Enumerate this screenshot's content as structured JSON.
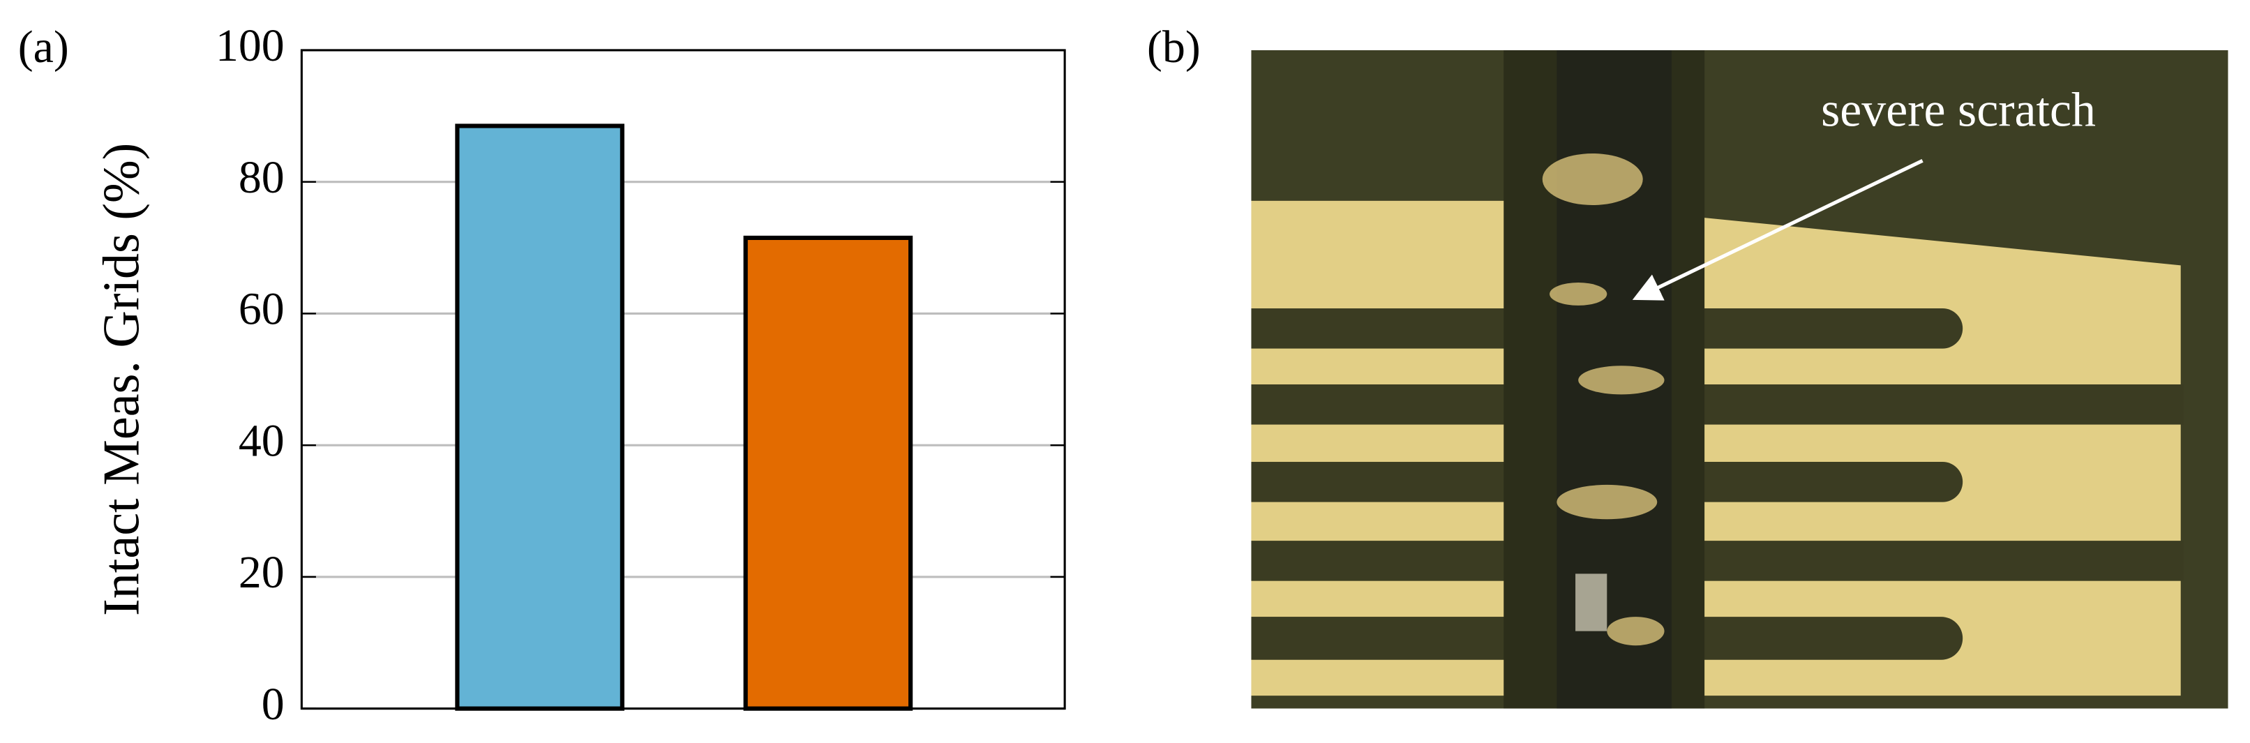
{
  "chart_data": {
    "type": "bar",
    "ylabel": "Intact Meas. Grids (%)",
    "categories": [
      null,
      null
    ],
    "values": [
      88.5,
      71.5
    ],
    "colors": [
      "#63b3d5",
      "#e36b00"
    ],
    "ylim": [
      0,
      100
    ],
    "yticks": [
      0,
      20,
      40,
      60,
      80,
      100
    ],
    "grid": true
  },
  "panels": {
    "a": "(a)",
    "b": "(b)"
  },
  "photo": {
    "annotation": "severe scratch"
  }
}
